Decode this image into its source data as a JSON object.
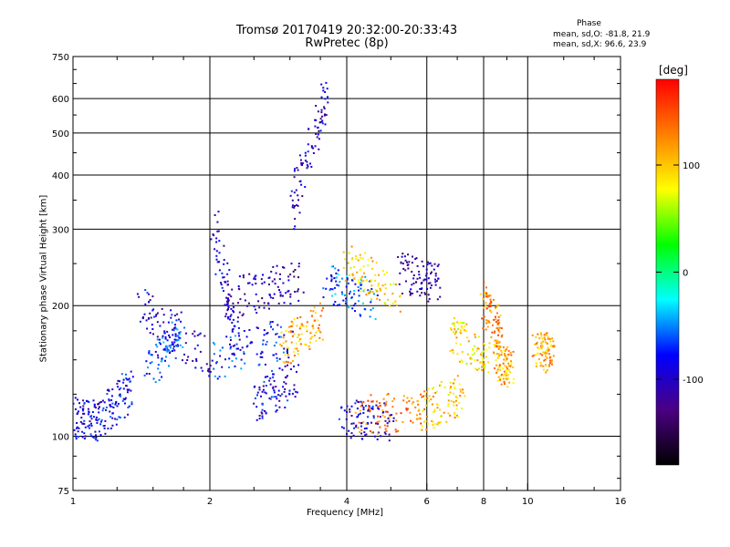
{
  "title": "Tromsø 20170419 20:32:00-20:33:43",
  "subtitle": "RwPretec (8p)",
  "phase_stats": {
    "heading": "Phase",
    "line_o": "mean, sd,O: -81.8, 21.9",
    "line_x": "mean, sd,X:  96.6, 23.9"
  },
  "colorbar": {
    "unit": "[deg]",
    "range": [
      -180,
      180
    ],
    "ticks": [
      {
        "value": 100,
        "label": "100"
      },
      {
        "value": 0,
        "label": "0"
      },
      {
        "value": -100,
        "label": "-100"
      }
    ],
    "colors": [
      "#000000",
      "#4b0082",
      "#0000ff",
      "#00ffff",
      "#00ff00",
      "#ffff00",
      "#ff8000",
      "#ff0000"
    ]
  },
  "chart_data": {
    "type": "scatter",
    "title": "Tromsø 20170419 20:32:00-20:33:43",
    "subtitle": "RwPretec (8p)",
    "xlabel": "Frequency [MHz]",
    "ylabel": "Stationary phase Virtual Height [km]",
    "x_scale": "log",
    "y_scale": "log",
    "xlim": [
      1,
      16
    ],
    "ylim": [
      75,
      750
    ],
    "x_ticks": [
      1,
      2,
      4,
      6,
      8,
      10,
      16
    ],
    "x_tick_labels": [
      "1",
      "2",
      "4",
      "6",
      "8",
      "10",
      "16"
    ],
    "y_ticks": [
      75,
      100,
      200,
      300,
      400,
      500,
      600,
      750
    ],
    "y_tick_labels": [
      "75",
      "100",
      "200",
      "300",
      "400",
      "500",
      "600",
      "750"
    ],
    "x_gridlines": [
      2,
      4,
      6,
      8,
      10
    ],
    "y_gridlines": [
      100,
      200,
      300,
      400,
      500,
      600
    ],
    "grid": true,
    "point_colour_variable": "phase [deg]",
    "trace_segments": [
      {
        "x": [
          1.0,
          1.15
        ],
        "y": [
          112,
          108
        ],
        "phase": -90
      },
      {
        "x": [
          1.15,
          1.35
        ],
        "y": [
          110,
          130
        ],
        "phase": -85
      },
      {
        "x": [
          1.4,
          2.0
        ],
        "y": [
          200,
          150
        ],
        "phase": -95
      },
      {
        "x": [
          1.45,
          1.75
        ],
        "y": [
          140,
          175
        ],
        "phase": -70
      },
      {
        "x": [
          2.0,
          3.0
        ],
        "y": [
          150,
          170
        ],
        "phase": -75
      },
      {
        "x": [
          2.05,
          2.3
        ],
        "y": [
          300,
          160
        ],
        "phase": -100
      },
      {
        "x": [
          2.3,
          3.2
        ],
        "y": [
          210,
          230
        ],
        "phase": -110
      },
      {
        "x": [
          2.5,
          3.1
        ],
        "y": [
          120,
          135
        ],
        "phase": -90
      },
      {
        "x": [
          2.9,
          3.5
        ],
        "y": [
          160,
          185
        ],
        "phase": 110
      },
      {
        "x": [
          3.0,
          3.6
        ],
        "y": [
          330,
          600
        ],
        "phase": -100
      },
      {
        "x": [
          3.6,
          4.6
        ],
        "y": [
          230,
          205
        ],
        "phase": -60
      },
      {
        "x": [
          4.0,
          5.2
        ],
        "y": [
          250,
          215
        ],
        "phase": 95
      },
      {
        "x": [
          3.9,
          5.0
        ],
        "y": [
          110,
          108
        ],
        "phase": -95
      },
      {
        "x": [
          4.2,
          6.0
        ],
        "y": [
          112,
          115
        ],
        "phase": 130
      },
      {
        "x": [
          5.2,
          6.4
        ],
        "y": [
          240,
          225
        ],
        "phase": -110
      },
      {
        "x": [
          5.8,
          7.2
        ],
        "y": [
          115,
          125
        ],
        "phase": 100
      },
      {
        "x": [
          6.8,
          8.2
        ],
        "y": [
          170,
          150
        ],
        "phase": 90
      },
      {
        "x": [
          8.0,
          8.8
        ],
        "y": [
          205,
          170
        ],
        "phase": 125
      },
      {
        "x": [
          8.5,
          9.2
        ],
        "y": [
          150,
          145
        ],
        "phase": 110
      },
      {
        "x": [
          10.4,
          11.4
        ],
        "y": [
          158,
          155
        ],
        "phase": 115
      }
    ]
  }
}
